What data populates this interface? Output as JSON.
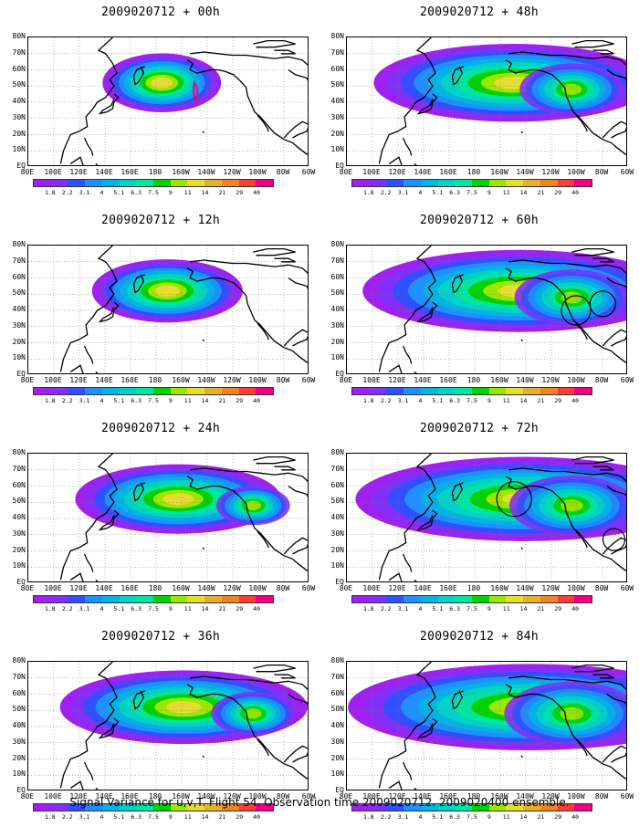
{
  "panels": [
    {
      "title": "2009020712 + 00h",
      "scale": 0.55,
      "extent": 0.45,
      "reach": 0.55
    },
    {
      "title": "2009020712 + 12h",
      "scale": 0.65,
      "extent": 0.55,
      "reach": 0.6
    },
    {
      "title": "2009020712 + 24h",
      "scale": 0.8,
      "extent": 0.7,
      "reach": 0.7
    },
    {
      "title": "2009020712 + 36h",
      "scale": 0.9,
      "extent": 0.8,
      "reach": 0.75
    },
    {
      "title": "2009020712 + 48h",
      "scale": 0.95,
      "extent": 0.9,
      "reach": 0.85
    },
    {
      "title": "2009020712 + 60h",
      "scale": 1.0,
      "extent": 1.0,
      "reach": 0.9
    },
    {
      "title": "2009020712 + 72h",
      "scale": 1.05,
      "extent": 1.05,
      "reach": 0.95
    },
    {
      "title": "2009020712 + 84h",
      "scale": 1.1,
      "extent": 1.1,
      "reach": 1.0
    }
  ],
  "lat_labels": [
    "80N",
    "70N",
    "60N",
    "50N",
    "40N",
    "30N",
    "20N",
    "10N",
    "EQ"
  ],
  "lon_labels": [
    "80E",
    "100E",
    "120E",
    "140E",
    "160E",
    "180",
    "160W",
    "140W",
    "120W",
    "100W",
    "80W",
    "60W"
  ],
  "colorbar": {
    "labels": [
      "1.8",
      "2.2",
      "3.1",
      "4",
      "5.1",
      "6.3",
      "7.5",
      "9",
      "11",
      "14",
      "21",
      "29",
      "40"
    ],
    "colors": [
      "#a020f0",
      "#8230f8",
      "#3050ff",
      "#1e90ff",
      "#00b4e6",
      "#00d2c8",
      "#00e6a0",
      "#00d200",
      "#9ee600",
      "#e6dc32",
      "#e6af2d",
      "#f08228",
      "#fa3c3c",
      "#f00082"
    ]
  },
  "caption": "Signal Variance for u,v,T. Flight 54. Observation time 2009020712. 2009020400 ensemble."
}
